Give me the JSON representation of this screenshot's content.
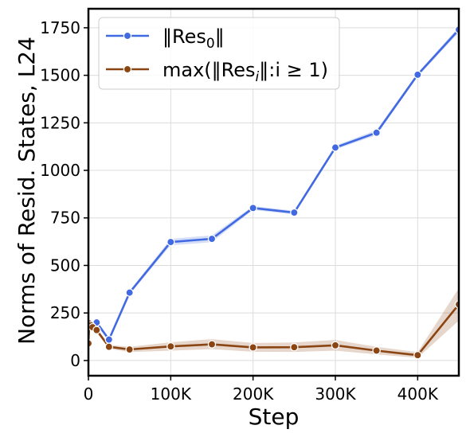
{
  "chart_data": {
    "type": "line",
    "title": "",
    "xlabel": "Step",
    "ylabel": "Norms of Resid. States, L24",
    "xlim": [
      0,
      450000
    ],
    "ylim": [
      -80,
      1850
    ],
    "x_ticks": [
      {
        "value": 0,
        "label": "0"
      },
      {
        "value": 100000,
        "label": "100K"
      },
      {
        "value": 200000,
        "label": "200K"
      },
      {
        "value": 300000,
        "label": "300K"
      },
      {
        "value": 400000,
        "label": "400K"
      }
    ],
    "y_ticks": [
      {
        "value": 0,
        "label": "0"
      },
      {
        "value": 250,
        "label": "250"
      },
      {
        "value": 500,
        "label": "500"
      },
      {
        "value": 750,
        "label": "750"
      },
      {
        "value": 1000,
        "label": "1000"
      },
      {
        "value": 1250,
        "label": "1250"
      },
      {
        "value": 1500,
        "label": "1500"
      },
      {
        "value": 1750,
        "label": "1750"
      }
    ],
    "grid": true,
    "legend_position": "top-left",
    "series": [
      {
        "name": "‖Res0‖",
        "legend_base": "‖Res",
        "legend_sub": "0",
        "legend_tail": "‖",
        "color": "#4169e1",
        "band_color": "#4169e1",
        "points": [
          {
            "x": 0,
            "y": 200,
            "lo": 190,
            "hi": 212
          },
          {
            "x": 2000,
            "y": 195,
            "lo": 185,
            "hi": 205
          },
          {
            "x": 5000,
            "y": 180,
            "lo": 170,
            "hi": 190
          },
          {
            "x": 10000,
            "y": 200,
            "lo": 190,
            "hi": 210
          },
          {
            "x": 25000,
            "y": 110,
            "lo": 100,
            "hi": 120
          },
          {
            "x": 50000,
            "y": 357,
            "lo": 347,
            "hi": 367
          },
          {
            "x": 100000,
            "y": 623,
            "lo": 606,
            "hi": 640
          },
          {
            "x": 150000,
            "y": 640,
            "lo": 622,
            "hi": 658
          },
          {
            "x": 200000,
            "y": 802,
            "lo": 792,
            "hi": 812
          },
          {
            "x": 250000,
            "y": 778,
            "lo": 768,
            "hi": 788
          },
          {
            "x": 300000,
            "y": 1120,
            "lo": 1110,
            "hi": 1130
          },
          {
            "x": 350000,
            "y": 1198,
            "lo": 1185,
            "hi": 1212
          },
          {
            "x": 400000,
            "y": 1503,
            "lo": 1493,
            "hi": 1513
          },
          {
            "x": 450000,
            "y": 1740,
            "lo": 1725,
            "hi": 1755
          }
        ]
      },
      {
        "name": "max(‖Resi‖:i≥1)",
        "legend_base": "max(‖Res",
        "legend_sub": "i",
        "legend_tail": "‖:i ≥ 1)",
        "color": "#8b4513",
        "band_color": "#8b4513",
        "points": [
          {
            "x": 0,
            "y": 90,
            "lo": 80,
            "hi": 100
          },
          {
            "x": 1000,
            "y": 195,
            "lo": 175,
            "hi": 215
          },
          {
            "x": 3000,
            "y": 185,
            "lo": 168,
            "hi": 202
          },
          {
            "x": 5000,
            "y": 175,
            "lo": 160,
            "hi": 190
          },
          {
            "x": 10000,
            "y": 160,
            "lo": 148,
            "hi": 172
          },
          {
            "x": 25000,
            "y": 72,
            "lo": 62,
            "hi": 82
          },
          {
            "x": 50000,
            "y": 58,
            "lo": 44,
            "hi": 72
          },
          {
            "x": 100000,
            "y": 74,
            "lo": 52,
            "hi": 96
          },
          {
            "x": 150000,
            "y": 85,
            "lo": 60,
            "hi": 112
          },
          {
            "x": 200000,
            "y": 69,
            "lo": 46,
            "hi": 92
          },
          {
            "x": 250000,
            "y": 70,
            "lo": 45,
            "hi": 95
          },
          {
            "x": 300000,
            "y": 80,
            "lo": 52,
            "hi": 108
          },
          {
            "x": 350000,
            "y": 52,
            "lo": 32,
            "hi": 72
          },
          {
            "x": 400000,
            "y": 28,
            "lo": 14,
            "hi": 44
          },
          {
            "x": 450000,
            "y": 295,
            "lo": 210,
            "hi": 380
          }
        ]
      }
    ]
  }
}
